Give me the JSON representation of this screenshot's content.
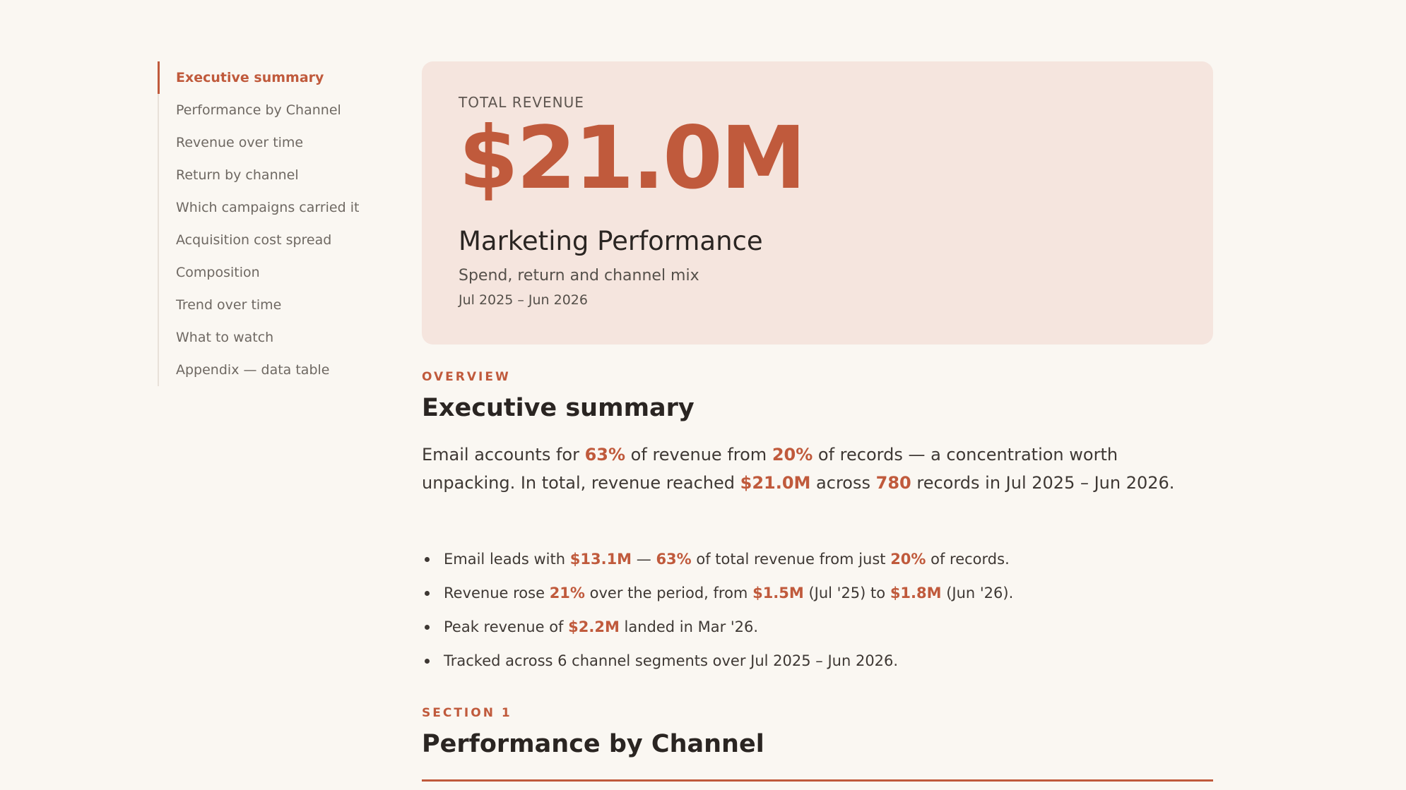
{
  "toc": {
    "items": [
      {
        "label": "Executive summary",
        "active": true
      },
      {
        "label": "Performance by Channel",
        "active": false
      },
      {
        "label": "Revenue over time",
        "active": false
      },
      {
        "label": "Return by channel",
        "active": false
      },
      {
        "label": "Which campaigns carried it",
        "active": false
      },
      {
        "label": "Acquisition cost spread",
        "active": false
      },
      {
        "label": "Composition",
        "active": false
      },
      {
        "label": "Trend over time",
        "active": false
      },
      {
        "label": "What to watch",
        "active": false
      },
      {
        "label": "Appendix — data table",
        "active": false
      }
    ]
  },
  "hero": {
    "label": "TOTAL REVENUE",
    "value": "$21.0M",
    "title": "Marketing Performance",
    "subtitle": "Spend, return and channel mix",
    "date_range": "Jul 2025 – Jun 2026"
  },
  "overview": {
    "eyebrow": "OVERVIEW",
    "title": "Executive summary",
    "summary": [
      {
        "t": "Email accounts for "
      },
      {
        "t": "63%",
        "hl": true
      },
      {
        "t": " of revenue from "
      },
      {
        "t": "20%",
        "hl": true
      },
      {
        "t": " of records — a concentration worth unpacking. In total, revenue reached "
      },
      {
        "t": "$21.0M",
        "hl": true
      },
      {
        "t": " across "
      },
      {
        "t": "780",
        "hl": true
      },
      {
        "t": " records in Jul 2025 – Jun 2026."
      }
    ],
    "bullets": [
      [
        {
          "t": "Email leads with "
        },
        {
          "t": "$13.1M",
          "hl": true
        },
        {
          "t": " — "
        },
        {
          "t": "63%",
          "hl": true
        },
        {
          "t": " of total revenue from just "
        },
        {
          "t": "20%",
          "hl": true
        },
        {
          "t": " of records."
        }
      ],
      [
        {
          "t": "Revenue rose "
        },
        {
          "t": "21%",
          "hl": true
        },
        {
          "t": " over the period, from "
        },
        {
          "t": "$1.5M",
          "hl": true
        },
        {
          "t": " (Jul '25) to "
        },
        {
          "t": "$1.8M",
          "hl": true
        },
        {
          "t": " (Jun '26)."
        }
      ],
      [
        {
          "t": "Peak revenue of "
        },
        {
          "t": "$2.2M",
          "hl": true
        },
        {
          "t": " landed in Mar '26."
        }
      ],
      [
        {
          "t": "Tracked across 6 channel segments over Jul 2025 – Jun 2026."
        }
      ]
    ]
  },
  "section1": {
    "eyebrow": "SECTION 1",
    "title": "Performance by Channel"
  },
  "colors": {
    "accent": "#c05a3c",
    "hero_bg": "#f5e5de",
    "page_bg": "#faf7f2"
  }
}
